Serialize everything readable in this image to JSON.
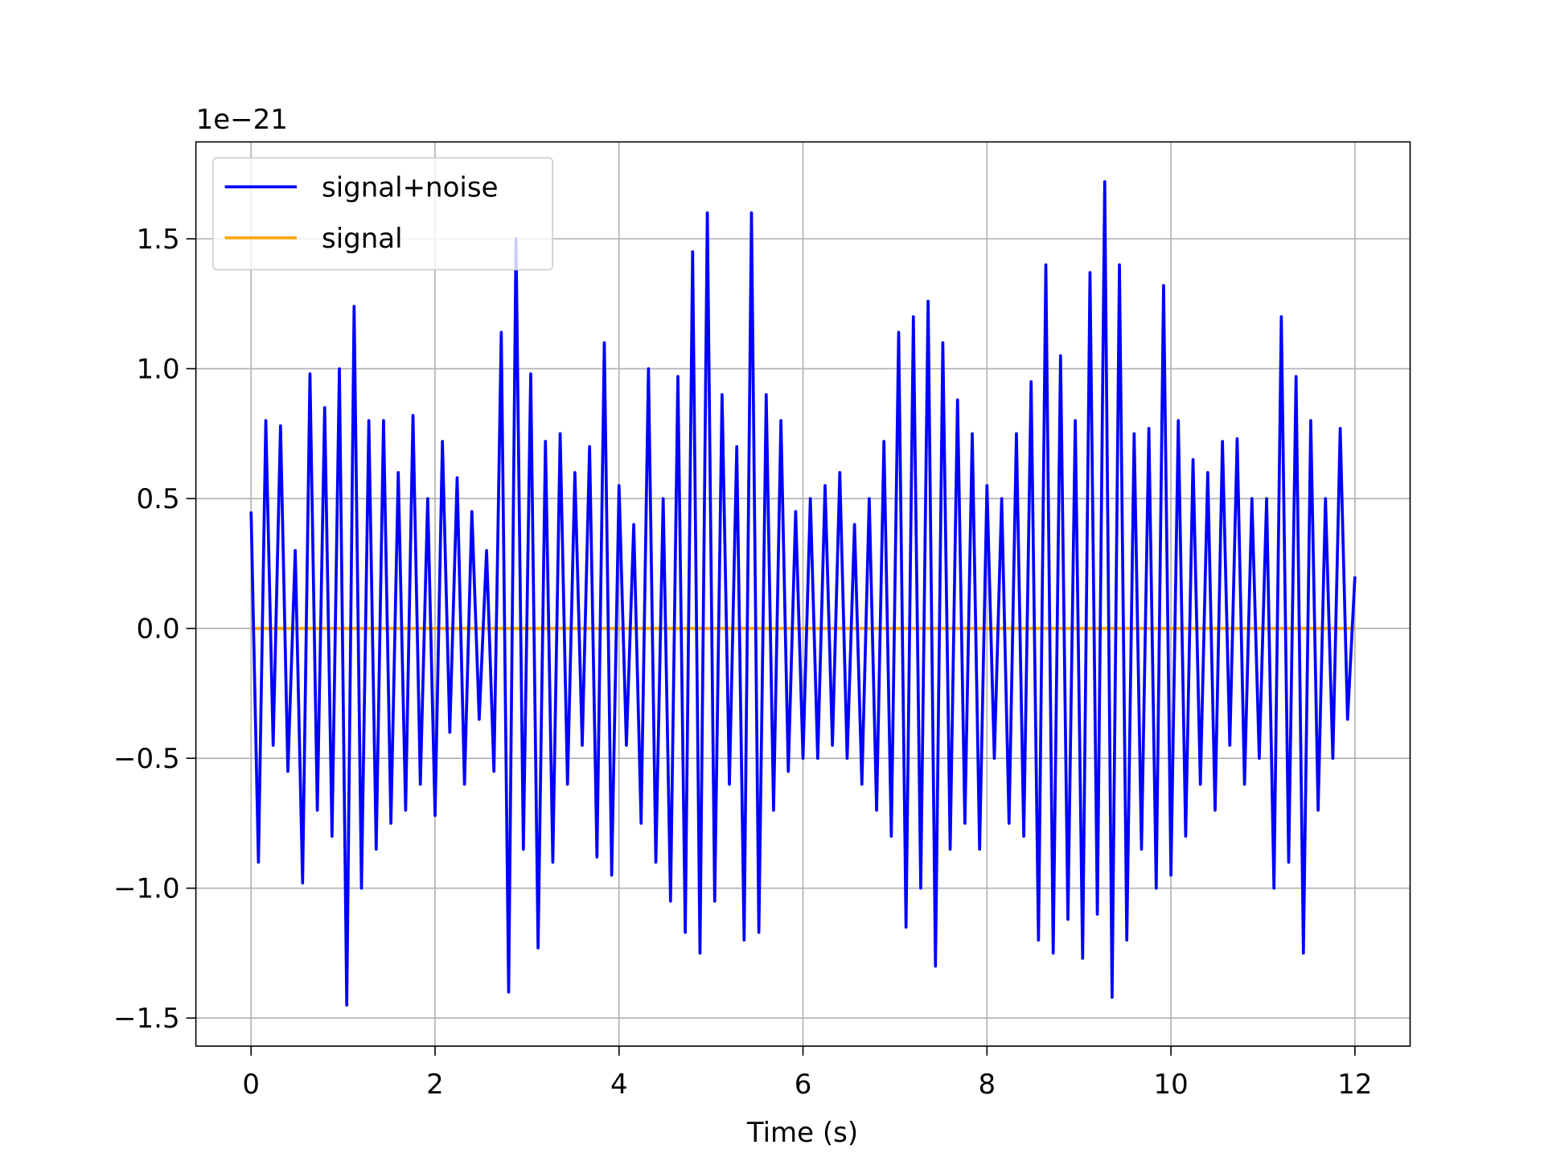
{
  "chart_data": {
    "type": "line",
    "xlabel": "Time (s)",
    "offset_text": "1e−21",
    "xlim": [
      -0.6,
      12.6
    ],
    "ylim": [
      -1.608,
      1.873
    ],
    "xticks": [
      0,
      2,
      4,
      6,
      8,
      10,
      12
    ],
    "yticks": [
      {
        "value": -1.5,
        "label": "−1.5"
      },
      {
        "value": -1.0,
        "label": "−1.0"
      },
      {
        "value": -0.5,
        "label": "−0.5"
      },
      {
        "value": 0.0,
        "label": "0.0"
      },
      0.5,
      {
        "value": 1.0,
        "label": "1.0"
      },
      1.5
    ],
    "grid": true,
    "legend": "upper left",
    "series": [
      {
        "name": "signal+noise",
        "color": "#0000ff",
        "x": [
          0,
          0.08,
          0.16,
          0.24,
          0.32,
          0.4,
          0.48,
          0.56,
          0.64,
          0.72,
          0.8,
          0.88,
          0.96,
          1.04,
          1.12,
          1.2,
          1.28,
          1.36,
          1.44,
          1.52,
          1.6,
          1.68,
          1.76,
          1.84,
          1.92,
          2.0,
          2.08,
          2.16,
          2.24,
          2.32,
          2.4,
          2.48,
          2.56,
          2.64,
          2.72,
          2.8,
          2.88,
          2.96,
          3.04,
          3.12,
          3.2,
          3.28,
          3.36,
          3.44,
          3.52,
          3.6,
          3.68,
          3.76,
          3.84,
          3.92,
          4.0,
          4.08,
          4.16,
          4.24,
          4.32,
          4.4,
          4.48,
          4.56,
          4.64,
          4.72,
          4.8,
          4.88,
          4.96,
          5.04,
          5.12,
          5.2,
          5.28,
          5.36,
          5.44,
          5.52,
          5.6,
          5.68,
          5.76,
          5.84,
          5.92,
          6.0,
          6.08,
          6.16,
          6.24,
          6.32,
          6.4,
          6.48,
          6.56,
          6.64,
          6.72,
          6.8,
          6.88,
          6.96,
          7.04,
          7.12,
          7.2,
          7.28,
          7.36,
          7.44,
          7.52,
          7.6,
          7.68,
          7.76,
          7.84,
          7.92,
          8.0,
          8.08,
          8.16,
          8.24,
          8.32,
          8.4,
          8.48,
          8.56,
          8.64,
          8.72,
          8.8,
          8.88,
          8.96,
          9.04,
          9.12,
          9.2,
          9.28,
          9.36,
          9.44,
          9.52,
          9.6,
          9.68,
          9.76,
          9.84,
          9.92,
          10.0,
          10.08,
          10.16,
          10.24,
          10.32,
          10.4,
          10.48,
          10.56,
          10.64,
          10.72,
          10.8,
          10.88,
          10.96,
          11.04,
          11.12,
          11.2,
          11.28,
          11.36,
          11.44,
          11.52,
          11.6,
          11.68,
          11.76,
          11.84,
          11.92,
          12.0
        ],
        "values": [
          0.45,
          -0.9,
          0.8,
          -0.45,
          0.78,
          -0.55,
          0.3,
          -0.98,
          0.98,
          -0.7,
          0.85,
          -0.8,
          1.0,
          -1.45,
          1.24,
          -1.0,
          0.8,
          -0.85,
          0.8,
          -0.75,
          0.6,
          -0.7,
          0.82,
          -0.6,
          0.5,
          -0.72,
          0.72,
          -0.4,
          0.58,
          -0.6,
          0.45,
          -0.35,
          0.3,
          -0.55,
          1.14,
          -1.4,
          1.5,
          -0.85,
          0.98,
          -1.23,
          0.72,
          -0.9,
          0.75,
          -0.6,
          0.6,
          -0.45,
          0.7,
          -0.88,
          1.1,
          -0.95,
          0.55,
          -0.45,
          0.4,
          -0.75,
          1.0,
          -0.9,
          0.5,
          -1.05,
          0.97,
          -1.17,
          1.45,
          -1.25,
          1.6,
          -1.05,
          0.9,
          -0.6,
          0.7,
          -1.2,
          1.6,
          -1.17,
          0.9,
          -0.7,
          0.8,
          -0.55,
          0.45,
          -0.5,
          0.5,
          -0.5,
          0.55,
          -0.45,
          0.6,
          -0.5,
          0.4,
          -0.6,
          0.5,
          -0.7,
          0.72,
          -0.8,
          1.14,
          -1.15,
          1.2,
          -1.0,
          1.26,
          -1.3,
          1.1,
          -0.85,
          0.88,
          -0.75,
          0.75,
          -0.85,
          0.55,
          -0.5,
          0.5,
          -0.75,
          0.75,
          -0.8,
          0.95,
          -1.2,
          1.4,
          -1.25,
          1.05,
          -1.12,
          0.8,
          -1.27,
          1.37,
          -1.1,
          1.72,
          -1.42,
          1.4,
          -1.2,
          0.75,
          -0.85,
          0.77,
          -1.0,
          1.32,
          -0.95,
          0.8,
          -0.8,
          0.65,
          -0.6,
          0.6,
          -0.7,
          0.72,
          -0.45,
          0.73,
          -0.6,
          0.5,
          -0.5,
          0.5,
          -1.0,
          1.2,
          -0.9,
          0.97,
          -1.25,
          0.8,
          -0.7,
          0.5,
          -0.5,
          0.77,
          -0.35,
          0.2
        ]
      },
      {
        "name": "signal",
        "color": "#ffa500",
        "x": [
          0,
          12
        ],
        "values": [
          0,
          0
        ]
      }
    ]
  }
}
